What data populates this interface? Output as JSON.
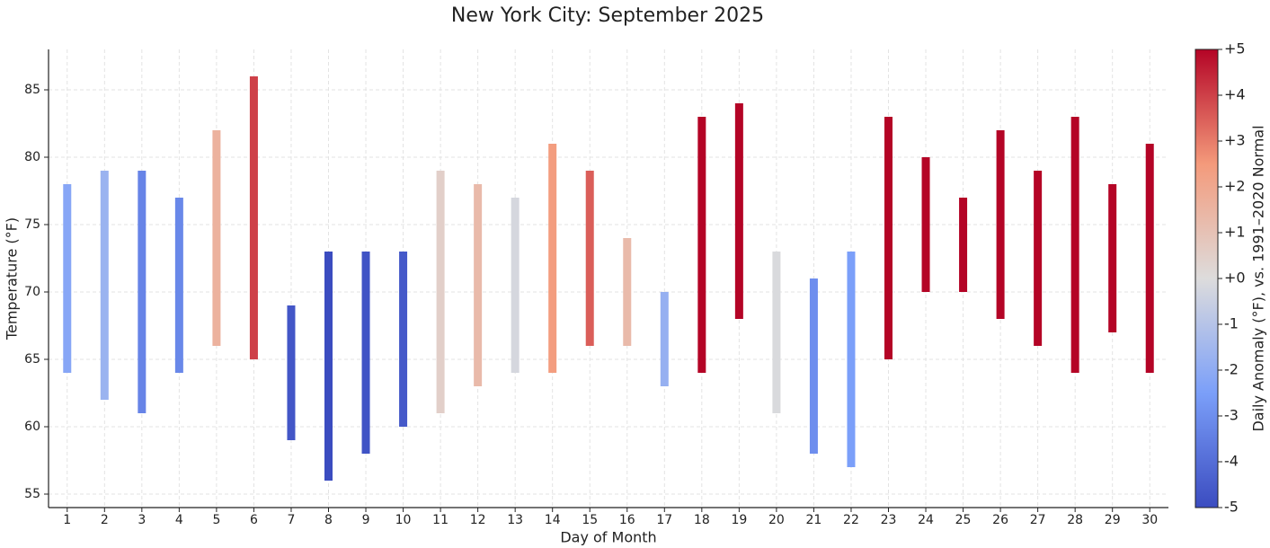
{
  "chart_data": {
    "type": "floating_bar",
    "title": "New York City: September 2025",
    "x_label": "Day of Month",
    "y_label": "Temperature (°F)",
    "colorbar_label": "Daily Anomaly (°F), vs. 1991–2020 Normal",
    "colormap": "coolwarm",
    "grid": true,
    "x": [
      1,
      2,
      3,
      4,
      5,
      6,
      7,
      8,
      9,
      10,
      11,
      12,
      13,
      14,
      15,
      16,
      17,
      18,
      19,
      20,
      21,
      22,
      23,
      24,
      25,
      26,
      27,
      28,
      29,
      30
    ],
    "low": [
      64,
      62,
      61,
      64,
      66,
      65,
      59,
      56,
      58,
      60,
      61,
      63,
      64,
      64,
      66,
      66,
      63,
      64,
      68,
      61,
      58,
      57,
      65,
      70,
      70,
      68,
      66,
      64,
      67,
      64
    ],
    "high": [
      78,
      79,
      79,
      77,
      82,
      86,
      69,
      73,
      73,
      73,
      79,
      78,
      77,
      81,
      79,
      74,
      70,
      83,
      84,
      73,
      71,
      73,
      83,
      80,
      77,
      82,
      79,
      83,
      78,
      81
    ],
    "anomaly": [
      -2.2,
      -1.7,
      -3.3,
      -3.2,
      1.6,
      4,
      -4.7,
      -5,
      -4.8,
      -4.6,
      0.5,
      1.3,
      -0.2,
      2.4,
      3.5,
      1.3,
      -1.8,
      5,
      5,
      -0.1,
      -3,
      -2.5,
      5,
      5,
      5,
      5,
      5,
      5,
      5,
      5
    ],
    "xlim": [
      0.5,
      30.5
    ],
    "xticks": [
      1,
      2,
      3,
      4,
      5,
      6,
      7,
      8,
      9,
      10,
      11,
      12,
      13,
      14,
      15,
      16,
      17,
      18,
      19,
      20,
      21,
      22,
      23,
      24,
      25,
      26,
      27,
      28,
      29,
      30
    ],
    "ylim": [
      54,
      88
    ],
    "yticks": [
      55,
      60,
      65,
      70,
      75,
      80,
      85
    ],
    "clim": [
      -5,
      5
    ],
    "cticks": [
      {
        "value": 5,
        "label": "+5"
      },
      {
        "value": 4,
        "label": "+4"
      },
      {
        "value": 3,
        "label": "+3"
      },
      {
        "value": 2,
        "label": "+2"
      },
      {
        "value": 1,
        "label": "+1"
      },
      {
        "value": 0,
        "label": "+0"
      },
      -1,
      -2,
      -3,
      -4,
      -5
    ]
  }
}
